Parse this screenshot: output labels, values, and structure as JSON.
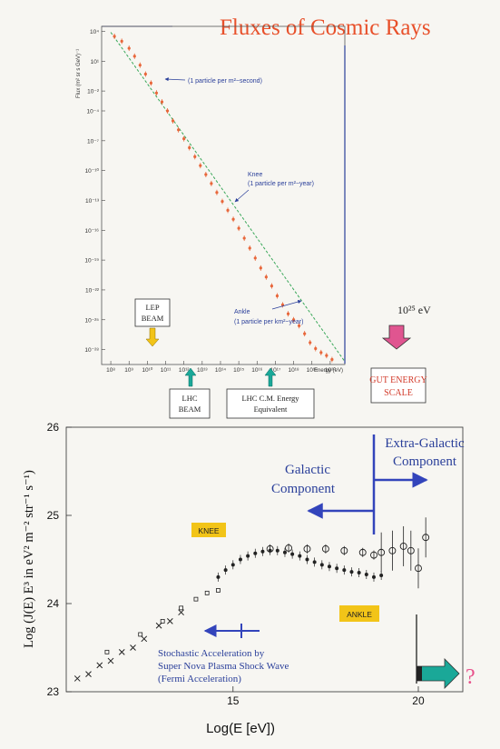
{
  "colors": {
    "title": "#e8502a",
    "data_orange": "#e8663a",
    "fit_green": "#3aa85a",
    "annot_blue": "#2a3f9a",
    "arrow_blue": "#3344bb",
    "yellow_tag": "#f2c418",
    "arrow_yellow": "#f2c418",
    "arrow_teal": "#1aa898",
    "arrow_pink": "#e05590",
    "gut_red": "#d23a2a",
    "question": "#e8508a"
  },
  "chart_data": [
    {
      "type": "scatter",
      "title": "Fluxes of Cosmic Rays",
      "ylabel": "Flux (m² sr s GeV)⁻¹",
      "xlabel": "Energy (eV)",
      "x_scale": "log",
      "y_scale": "log",
      "xlim_exp": [
        7.5,
        20.8
      ],
      "ylim_exp": [
        -29.5,
        4.5
      ],
      "x_ticks": [
        "10⁸",
        "10⁹",
        "10¹⁰",
        "10¹¹",
        "10¹²",
        "10¹³",
        "10¹⁴",
        "10¹⁵",
        "10¹⁶",
        "10¹⁷",
        "10¹⁸",
        "10¹⁹",
        "10²⁰"
      ],
      "x_tick_exp": [
        8,
        9,
        10,
        11,
        12,
        13,
        14,
        15,
        16,
        17,
        18,
        19,
        20
      ],
      "y_ticks": [
        "10⁴",
        "10¹",
        "10⁻²",
        "10⁻⁴",
        "10⁻⁷",
        "10⁻¹⁰",
        "10⁻¹³",
        "10⁻¹⁶",
        "10⁻¹⁹",
        "10⁻²²",
        "10⁻²⁵",
        "10⁻²⁸"
      ],
      "y_tick_exp": [
        4,
        1,
        -2,
        -4,
        -7,
        -10,
        -13,
        -16,
        -19,
        -22,
        -25,
        -28
      ],
      "series": [
        {
          "x_exp": [
            8.2,
            8.6,
            9.0,
            9.3,
            9.6,
            9.9,
            10.2,
            10.5,
            10.8,
            11.1,
            11.4,
            11.7,
            12.0,
            12.3,
            12.6,
            12.9,
            13.2,
            13.5,
            13.8,
            14.1,
            14.4,
            14.7,
            15.0,
            15.3,
            15.6,
            15.9,
            16.2,
            16.5,
            16.8,
            17.1,
            17.4,
            17.7,
            18.0,
            18.3,
            18.6,
            18.9,
            19.2,
            19.5,
            19.8,
            20.1
          ],
          "y_exp": [
            3.5,
            3.0,
            2.3,
            1.5,
            0.6,
            -0.3,
            -1.2,
            -2.2,
            -3.1,
            -4.0,
            -5.0,
            -5.9,
            -6.8,
            -7.7,
            -8.6,
            -9.5,
            -10.4,
            -11.3,
            -12.2,
            -13.1,
            -14.0,
            -14.9,
            -15.8,
            -16.8,
            -17.8,
            -18.8,
            -19.8,
            -20.7,
            -21.6,
            -22.6,
            -23.5,
            -24.4,
            -25.0,
            -25.6,
            -26.4,
            -27.3,
            -27.9,
            -28.3,
            -28.6,
            -29.0
          ]
        }
      ],
      "fit_line_exp": {
        "x": [
          8.0,
          20.8
        ],
        "y": [
          3.9,
          -29.2
        ]
      },
      "annotations": {
        "per_m2_second": "(1 particle per m²−second)",
        "knee": "Knee",
        "per_m2_year": "(1 particle per m²−year)",
        "ankle": "Ankle",
        "per_km2_year": "(1 particle per km²−year)"
      },
      "markers": {
        "lep_beam": "LEP BEAM",
        "lhc_beam": "LHC BEAM",
        "lhc_cm": "LHC C.M. Energy Equivalent",
        "gut_energy": "10²⁵ eV",
        "gut_scale": "GUT ENERGY SCALE"
      }
    },
    {
      "type": "scatter",
      "xlabel": "Log(E [eV])",
      "ylabel": "Log (J(E) E³ in eV² m⁻² str⁻¹ s⁻¹)",
      "xlim": [
        10.5,
        21.2
      ],
      "ylim": [
        23.0,
        26.0
      ],
      "x_ticks": [
        "15",
        "20"
      ],
      "x_tick_values": [
        15,
        20
      ],
      "y_ticks": [
        "23",
        "24",
        "25",
        "26"
      ],
      "y_tick_values": [
        23,
        24,
        25,
        26
      ],
      "series": [
        {
          "marker": "x",
          "x": [
            10.8,
            11.1,
            11.4,
            11.7,
            12.0,
            12.3,
            12.6,
            13.0,
            13.3,
            13.6
          ],
          "y": [
            23.15,
            23.2,
            23.3,
            23.35,
            23.45,
            23.5,
            23.6,
            23.75,
            23.8,
            23.9
          ]
        },
        {
          "marker": "square",
          "x": [
            11.6,
            12.5,
            13.1,
            13.6,
            14.0,
            14.3,
            14.6
          ],
          "y": [
            23.45,
            23.65,
            23.8,
            23.95,
            24.05,
            24.12,
            24.15
          ]
        },
        {
          "marker": "dot",
          "x": [
            14.6,
            14.8,
            15.0,
            15.2,
            15.4,
            15.6,
            15.8,
            16.0,
            16.2,
            16.4,
            16.6,
            16.8,
            17.0,
            17.2,
            17.4,
            17.6,
            17.8,
            18.0,
            18.2,
            18.4,
            18.6,
            18.8,
            19.0
          ],
          "y": [
            24.3,
            24.38,
            24.44,
            24.5,
            24.54,
            24.57,
            24.59,
            24.6,
            24.6,
            24.58,
            24.56,
            24.54,
            24.5,
            24.47,
            24.44,
            24.42,
            24.4,
            24.38,
            24.36,
            24.35,
            24.33,
            24.3,
            24.32
          ]
        },
        {
          "marker": "circle",
          "x": [
            16.0,
            16.5,
            17.0,
            17.5,
            18.0,
            18.5,
            18.8,
            19.0,
            19.3,
            19.6,
            19.8,
            20.0,
            20.2
          ],
          "y": [
            24.62,
            24.63,
            24.62,
            24.62,
            24.6,
            24.58,
            24.55,
            24.58,
            24.6,
            24.65,
            24.6,
            24.4,
            24.75
          ]
        }
      ],
      "tags": {
        "knee": "KNEE",
        "ankle": "ANKLE"
      },
      "annotations": {
        "galactic_1": "Galactic",
        "galactic_2": "Component",
        "extra_1": "Extra-Galactic",
        "extra_2": "Component",
        "stochastic_1": "Stochastic Acceleration by",
        "stochastic_2": "Super Nova Plasma Shock Wave",
        "stochastic_3": "(Fermi Acceleration)",
        "question": "?"
      }
    }
  ]
}
